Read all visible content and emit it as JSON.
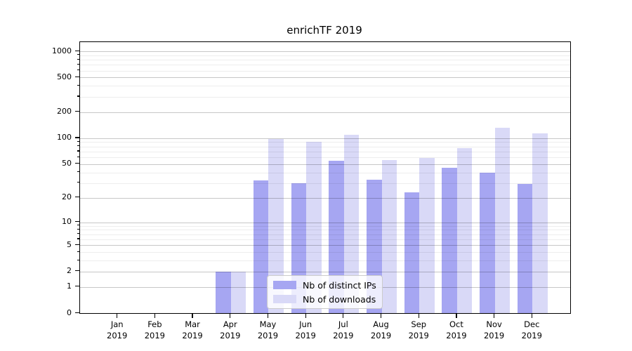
{
  "title": "enrichTF 2019",
  "chart_data": {
    "type": "bar",
    "title": "enrichTF 2019",
    "categories": [
      "Jan",
      "Feb",
      "Mar",
      "Apr",
      "May",
      "Jun",
      "Jul",
      "Aug",
      "Sep",
      "Oct",
      "Nov",
      "Dec"
    ],
    "category_year": "2019",
    "series": [
      {
        "name": "Nb of distinct IPs",
        "color": "#a6a6f2",
        "values": [
          0,
          0,
          0,
          2,
          32,
          30,
          55,
          33,
          23,
          45,
          40,
          29
        ]
      },
      {
        "name": "Nb of downloads",
        "color": "#d9d9f7",
        "values": [
          0,
          0,
          0,
          2,
          97,
          90,
          110,
          56,
          59,
          77,
          132,
          114
        ]
      }
    ],
    "xlabel": "",
    "ylabel": "",
    "yscale": "log1p",
    "ylim": [
      0,
      1000
    ],
    "y_major_ticks": [
      0,
      1,
      2,
      5,
      10,
      20,
      50,
      100,
      200,
      500,
      1000
    ],
    "y_minor_ticks": [
      3,
      4,
      6,
      7,
      8,
      9,
      30,
      40,
      60,
      70,
      80,
      90,
      300,
      400,
      600,
      700,
      800,
      900
    ],
    "grid": "on",
    "legend_position": "lower center"
  }
}
